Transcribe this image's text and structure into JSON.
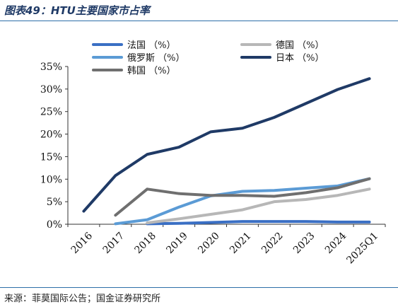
{
  "header": {
    "title": "图表49：HTU主要国家市占率"
  },
  "footer": {
    "source": "来源：菲莫国际公告；国金证券研究所"
  },
  "colors": {
    "France": "#3a6fc4",
    "Germany": "#b7b7b7",
    "Russia": "#5b9bd5",
    "Japan": "#1f3a66",
    "Korea": "#6f6f6f",
    "rule": "#2e6fa8"
  },
  "chart_data": {
    "type": "line",
    "categories": [
      "2016",
      "2017",
      "2018",
      "2019",
      "2020",
      "2021",
      "2022",
      "2023",
      "2024",
      "2025Q1"
    ],
    "ylim": [
      0,
      35
    ],
    "yticks": [
      0,
      5,
      10,
      15,
      20,
      25,
      30,
      35
    ],
    "ytick_labels": [
      "0%",
      "5%",
      "10%",
      "15%",
      "20%",
      "25%",
      "30%",
      "35%"
    ],
    "legend_position": "top",
    "grid": false,
    "series": [
      {
        "key": "France",
        "name": "法国  （%）",
        "values": [
          null,
          null,
          0.1,
          0.2,
          0.4,
          0.6,
          0.6,
          0.6,
          0.5,
          0.5
        ]
      },
      {
        "key": "Germany",
        "name": "德国  （%）",
        "values": [
          null,
          null,
          0.3,
          1.2,
          2.2,
          3.2,
          5.0,
          5.5,
          6.4,
          7.8
        ]
      },
      {
        "key": "Russia",
        "name": "俄罗斯  （%）",
        "values": [
          null,
          0.1,
          1.0,
          3.8,
          6.3,
          7.3,
          7.5,
          8.0,
          8.5,
          10.1
        ]
      },
      {
        "key": "Japan",
        "name": "日本  （%）",
        "values": [
          2.9,
          10.8,
          15.5,
          17.1,
          20.5,
          21.3,
          23.7,
          26.8,
          29.9,
          32.3
        ]
      },
      {
        "key": "Korea",
        "name": "韩国  （%）",
        "values": [
          null,
          2.0,
          7.8,
          6.8,
          6.4,
          6.4,
          6.2,
          7.0,
          8.1,
          10.1
        ]
      }
    ]
  }
}
